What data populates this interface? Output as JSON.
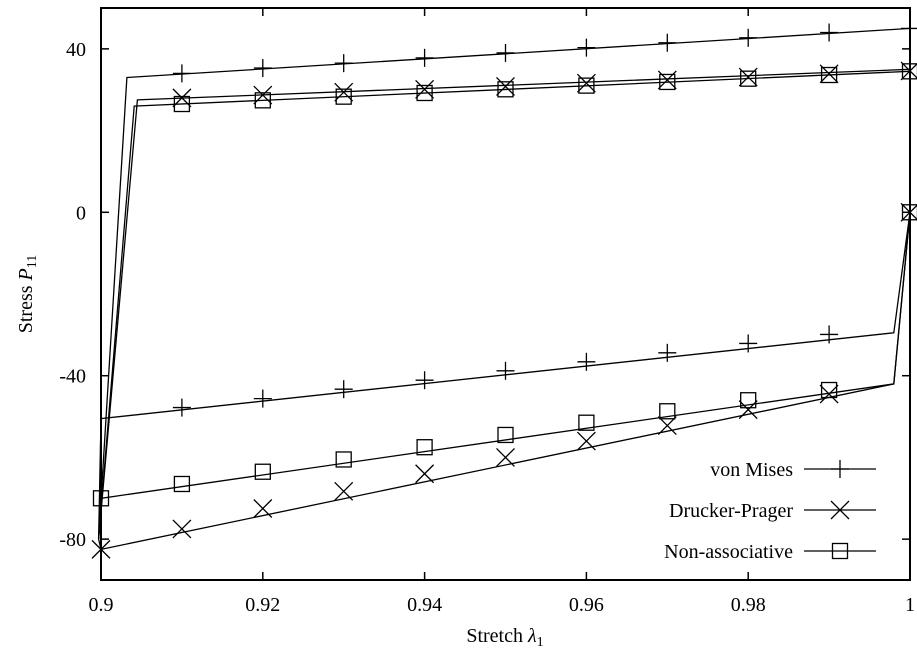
{
  "chart_data": {
    "type": "line",
    "xlabel": "Stretch",
    "xlabel_symbol": "λ",
    "xlabel_subscript": "1",
    "ylabel": "Stress",
    "ylabel_symbol": "P",
    "ylabel_subscript": "11",
    "xlim": [
      0.9,
      1.0
    ],
    "ylim": [
      -90,
      50
    ],
    "x_ticks": [
      0.9,
      0.92,
      0.94,
      0.96,
      0.98,
      1.0
    ],
    "x_tick_labels": [
      "0.9",
      "0.92",
      "0.94",
      "0.96",
      "0.98",
      "1"
    ],
    "y_ticks": [
      -80,
      -40,
      0,
      40
    ],
    "y_tick_labels": [
      "-80",
      "-40",
      "0",
      "40"
    ],
    "grid": false,
    "legend_position": "bottom-right",
    "series": [
      {
        "name": "von Mises",
        "marker": "plus",
        "line": [
          [
            1.0,
            0
          ],
          [
            0.998,
            -29.5
          ],
          [
            0.9,
            -50.5
          ],
          [
            0.8997,
            -80
          ],
          [
            0.9032,
            33
          ],
          [
            1.0,
            45
          ]
        ],
        "markers": [
          [
            0.91,
            -47.8
          ],
          [
            0.92,
            -45.6
          ],
          [
            0.93,
            -43.3
          ],
          [
            0.94,
            -41.1
          ],
          [
            0.95,
            -38.8
          ],
          [
            0.96,
            -36.6
          ],
          [
            0.97,
            -34.4
          ],
          [
            0.98,
            -32.1
          ],
          [
            0.99,
            -29.9
          ],
          [
            0.91,
            34
          ],
          [
            0.92,
            35.3
          ],
          [
            0.93,
            36.5
          ],
          [
            0.94,
            37.8
          ],
          [
            0.95,
            39
          ],
          [
            0.96,
            40.3
          ],
          [
            0.97,
            41.5
          ],
          [
            0.98,
            42.7
          ],
          [
            0.99,
            44
          ],
          [
            1.0,
            45
          ]
        ]
      },
      {
        "name": "Drucker-Prager",
        "marker": "cross",
        "line": [
          [
            1.0,
            0
          ],
          [
            0.998,
            -42
          ],
          [
            0.9,
            -82.5
          ],
          [
            0.8997,
            -80
          ],
          [
            0.9045,
            27.5
          ],
          [
            1.0,
            35
          ]
        ],
        "markers": [
          [
            0.9,
            -82.5
          ],
          [
            0.91,
            -77.5
          ],
          [
            0.92,
            -72.5
          ],
          [
            0.93,
            -68.3
          ],
          [
            0.94,
            -64
          ],
          [
            0.95,
            -60
          ],
          [
            0.96,
            -56
          ],
          [
            0.97,
            -52.2
          ],
          [
            0.98,
            -48.3
          ],
          [
            0.99,
            -44.5
          ],
          [
            0.91,
            28
          ],
          [
            0.92,
            28.7
          ],
          [
            0.93,
            29.4
          ],
          [
            0.94,
            30.1
          ],
          [
            0.95,
            30.8
          ],
          [
            0.96,
            31.6
          ],
          [
            0.97,
            32.4
          ],
          [
            0.98,
            33.1
          ],
          [
            0.99,
            33.9
          ],
          [
            1.0,
            34.6
          ],
          [
            1.0,
            0
          ]
        ]
      },
      {
        "name": "Non-associative",
        "marker": "square",
        "line": [
          [
            1.0,
            0
          ],
          [
            0.998,
            -42
          ],
          [
            0.9,
            -70
          ],
          [
            0.8997,
            -80
          ],
          [
            0.9041,
            26
          ],
          [
            1.0,
            34.5
          ]
        ],
        "markers": [
          [
            0.9,
            -70
          ],
          [
            0.91,
            -66.5
          ],
          [
            0.92,
            -63.5
          ],
          [
            0.93,
            -60.5
          ],
          [
            0.94,
            -57.5
          ],
          [
            0.95,
            -54.5
          ],
          [
            0.96,
            -51.5
          ],
          [
            0.97,
            -48.7
          ],
          [
            0.98,
            -46
          ],
          [
            0.99,
            -43.5
          ],
          [
            0.91,
            26.5
          ],
          [
            0.92,
            27.4
          ],
          [
            0.93,
            28.3
          ],
          [
            0.94,
            29.2
          ],
          [
            0.95,
            30.1
          ],
          [
            0.96,
            31
          ],
          [
            0.97,
            31.9
          ],
          [
            0.98,
            32.7
          ],
          [
            0.99,
            33.6
          ],
          [
            1.0,
            34.5
          ],
          [
            1.0,
            0
          ]
        ]
      }
    ]
  }
}
